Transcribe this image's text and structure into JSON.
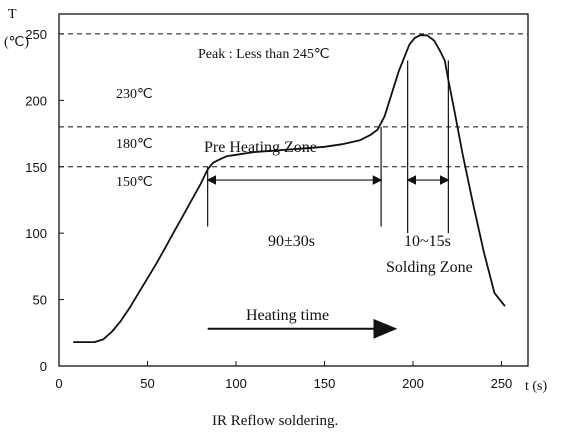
{
  "chart_data": {
    "type": "line",
    "title": "",
    "caption": "IR Reflow soldering.",
    "xlabel": "t (s)",
    "ylabel_top": "T",
    "ylabel_unit": "(℃)",
    "xlim": [
      0,
      265
    ],
    "ylim": [
      0,
      265
    ],
    "x_ticks": [
      0,
      50,
      100,
      150,
      200,
      250
    ],
    "y_ticks": [
      0,
      50,
      100,
      150,
      200,
      250
    ],
    "grid": false,
    "series": [
      {
        "x": [
          8,
          20,
          25,
          30,
          35,
          40,
          45,
          50,
          55,
          60,
          65,
          70,
          75,
          80,
          84,
          87,
          90,
          95,
          100,
          110,
          120,
          130,
          140,
          150,
          160,
          170,
          176,
          180,
          184,
          188,
          192,
          195,
          198,
          201,
          204,
          208,
          212,
          215,
          218,
          220,
          223,
          228,
          234,
          240,
          246,
          252
        ],
        "y": [
          18,
          18,
          20,
          26,
          34,
          44,
          55,
          66,
          77,
          89,
          101,
          113,
          125,
          137,
          148,
          153,
          155,
          158,
          159,
          161,
          162,
          163,
          164,
          165,
          167,
          170,
          174,
          178,
          188,
          205,
          222,
          232,
          242,
          247,
          249,
          249,
          245,
          238,
          230,
          215,
          195,
          160,
          122,
          86,
          55,
          45
        ]
      }
    ],
    "reference_lines": [
      {
        "y": 250,
        "style": "dashed"
      },
      {
        "y": 180,
        "style": "dashed"
      },
      {
        "y": 150,
        "style": "dashed"
      }
    ],
    "vertical_markers": [
      84,
      182,
      197,
      220
    ],
    "annotations": {
      "peak": "Peak : Less than 245℃",
      "t230": "230℃",
      "t180": "180℃",
      "t150": "150℃",
      "pre_heating": "Pre Heating Zone",
      "preheat_time": "90±30s",
      "solder_time": "10~15s",
      "solder_zone": "Solding Zone",
      "heating_time": "Heating time"
    }
  }
}
